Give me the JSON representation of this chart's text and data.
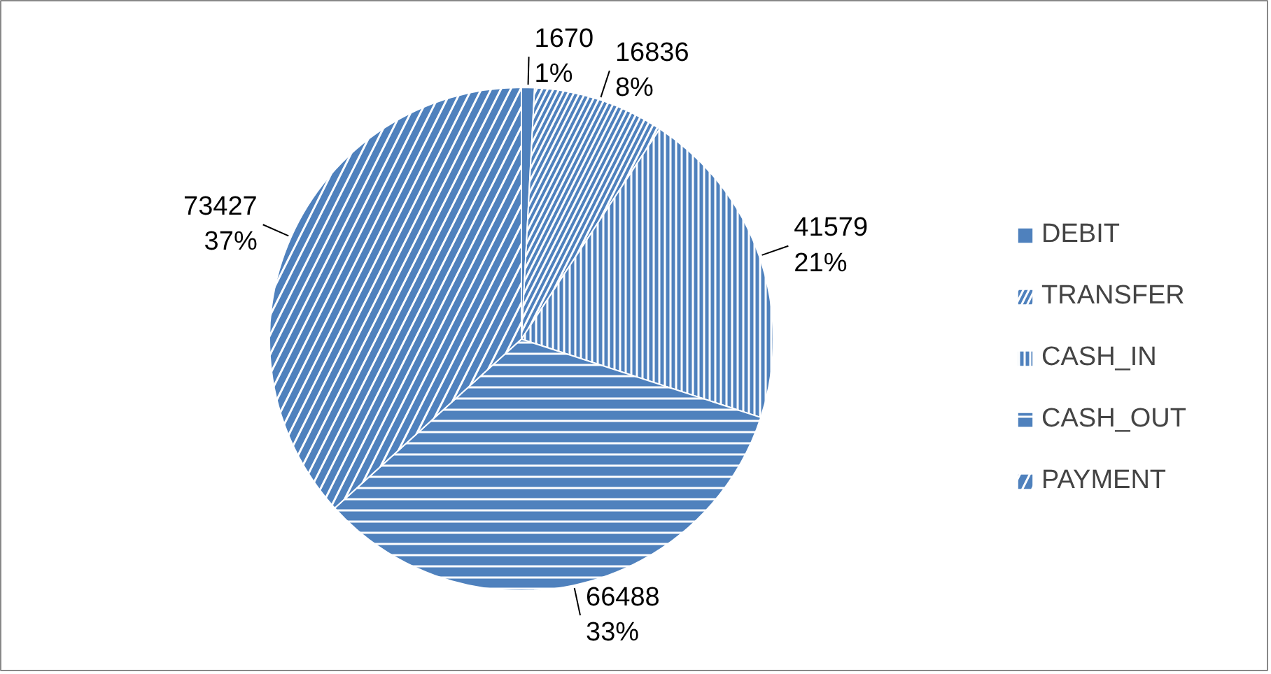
{
  "chart_data": {
    "type": "pie",
    "categories": [
      "DEBIT",
      "TRANSFER",
      "CASH_IN",
      "CASH_OUT",
      "PAYMENT"
    ],
    "values": [
      1670,
      16836,
      41579,
      66488,
      73427
    ],
    "value_labels": [
      "1670\n1%",
      "16836\n8%",
      "41579\n21%",
      "66488\n33%",
      "73427\n37%"
    ],
    "colors": [
      "#4f81bd",
      "#4f81bd",
      "#4f81bd",
      "#4f81bd",
      "#4f81bd"
    ],
    "legend": "right"
  }
}
